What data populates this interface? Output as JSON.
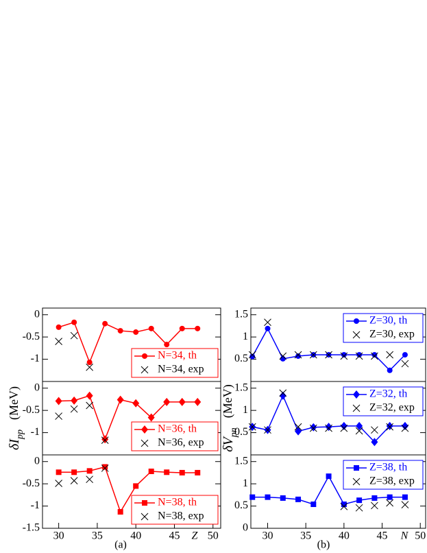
{
  "chart_data": [
    {
      "type": "line",
      "xlim": [
        27.9,
        51
      ],
      "ylim": [
        -1.5,
        0.15
      ],
      "yticks": [
        0,
        -0.5,
        -1
      ],
      "legend": "lower right",
      "series": [
        {
          "name": "N=34, th",
          "color": "#ff0000",
          "marker": "circle",
          "line": true,
          "x": [
            30,
            32,
            34,
            36,
            38,
            40,
            42,
            44,
            46,
            48
          ],
          "values": [
            -0.28,
            -0.17,
            -1.07,
            -0.2,
            -0.36,
            -0.39,
            -0.31,
            -0.67,
            -0.31,
            -0.31
          ]
        },
        {
          "name": "N=34, exp",
          "color": "#000000",
          "marker": "cross",
          "line": false,
          "x": [
            30,
            32,
            34
          ],
          "values": [
            -0.6,
            -0.47,
            -1.18
          ]
        }
      ]
    },
    {
      "type": "line",
      "xlim": [
        27.9,
        51
      ],
      "ylim": [
        -1.5,
        0.15
      ],
      "yticks": [
        0,
        -0.5,
        -1
      ],
      "legend": "lower right",
      "ylabel": "δI",
      "ylabel_sub": "pp",
      "ylabel_unit": "(MeV)",
      "series": [
        {
          "name": "N=36, th",
          "color": "#ff0000",
          "marker": "diamond",
          "line": true,
          "x": [
            30,
            32,
            34,
            36,
            38,
            40,
            42,
            44,
            46,
            48
          ],
          "values": [
            -0.29,
            -0.28,
            -0.17,
            -1.15,
            -0.26,
            -0.34,
            -0.66,
            -0.31,
            -0.31,
            -0.31
          ]
        },
        {
          "name": "N=36, exp",
          "color": "#000000",
          "marker": "cross",
          "line": false,
          "x": [
            30,
            32,
            34,
            36
          ],
          "values": [
            -0.63,
            -0.47,
            -0.39,
            -1.17
          ]
        }
      ]
    },
    {
      "type": "line",
      "xlim": [
        27.9,
        51
      ],
      "ylim": [
        -1.5,
        0.15
      ],
      "yticks": [
        0,
        -0.5,
        -1,
        -1.5
      ],
      "xticks": [
        30,
        35,
        40,
        45,
        50
      ],
      "legend": "lower right",
      "xlabel": "Z",
      "caption": "(a)",
      "series": [
        {
          "name": "N=38, th",
          "color": "#ff0000",
          "marker": "square",
          "line": true,
          "x": [
            30,
            32,
            34,
            36,
            38,
            40,
            42,
            44,
            46,
            48
          ],
          "values": [
            -0.24,
            -0.24,
            -0.21,
            -0.12,
            -1.13,
            -0.55,
            -0.22,
            -0.24,
            -0.25,
            -0.25
          ]
        },
        {
          "name": "N=38, exp",
          "color": "#000000",
          "marker": "cross",
          "line": false,
          "x": [
            30,
            32,
            34,
            36
          ],
          "values": [
            -0.49,
            -0.43,
            -0.4,
            -0.15
          ]
        }
      ]
    },
    {
      "type": "line",
      "xlim": [
        27.8,
        50.7
      ],
      "ylim": [
        0,
        1.65
      ],
      "yticks": [
        1.5,
        1,
        0.5
      ],
      "legend": "upper right",
      "series": [
        {
          "name": "Z=30, th",
          "color": "#0000ff",
          "marker": "circle",
          "line": true,
          "x": [
            28,
            30,
            32,
            34,
            36,
            38,
            40,
            42,
            44,
            46,
            48
          ],
          "values": [
            0.56,
            1.19,
            0.51,
            0.57,
            0.6,
            0.6,
            0.6,
            0.6,
            0.6,
            0.25,
            0.6
          ]
        },
        {
          "name": "Z=30, exp",
          "color": "#000000",
          "marker": "cross",
          "line": false,
          "x": [
            28,
            30,
            32,
            34,
            36,
            38,
            40,
            42,
            44,
            46,
            48
          ],
          "values": [
            0.6,
            1.33,
            0.57,
            0.6,
            0.6,
            0.6,
            0.57,
            0.57,
            0.57,
            0.6,
            0.4
          ]
        }
      ]
    },
    {
      "type": "line",
      "xlim": [
        27.8,
        50.7
      ],
      "ylim": [
        0,
        1.65
      ],
      "yticks": [
        1.5,
        1,
        0.5
      ],
      "legend": "upper right",
      "ylabel": "δV",
      "ylabel_sub": "pn",
      "ylabel_unit": "(MeV)",
      "series": [
        {
          "name": "Z=32, th",
          "color": "#0000ff",
          "marker": "diamond",
          "line": true,
          "x": [
            28,
            30,
            32,
            34,
            36,
            38,
            40,
            42,
            44,
            46,
            48
          ],
          "values": [
            0.63,
            0.56,
            1.33,
            0.53,
            0.62,
            0.63,
            0.65,
            0.65,
            0.29,
            0.65,
            0.65
          ]
        },
        {
          "name": "Z=32, exp",
          "color": "#000000",
          "marker": "cross",
          "line": false,
          "x": [
            28,
            30,
            32,
            34,
            36,
            38,
            40,
            42,
            44,
            46,
            48
          ],
          "values": [
            0.63,
            0.56,
            1.39,
            0.63,
            0.6,
            0.6,
            0.6,
            0.54,
            0.56,
            0.63,
            0.6
          ]
        }
      ]
    },
    {
      "type": "line",
      "xlim": [
        27.8,
        50.7
      ],
      "ylim": [
        0,
        1.65
      ],
      "yticks": [
        0,
        0.5,
        1,
        1.5
      ],
      "xticks": [
        30,
        35,
        40,
        45,
        50
      ],
      "legend": "upper right",
      "xlabel": "N",
      "caption": "(b)",
      "series": [
        {
          "name": "Z=38, th",
          "color": "#0000ff",
          "marker": "square",
          "line": true,
          "x": [
            28,
            30,
            32,
            34,
            36,
            38,
            40,
            42,
            44,
            46,
            48
          ],
          "values": [
            0.7,
            0.7,
            0.68,
            0.65,
            0.54,
            1.17,
            0.54,
            0.63,
            0.68,
            0.7,
            0.7
          ]
        },
        {
          "name": "Z=38, exp",
          "color": "#000000",
          "marker": "cross",
          "line": false,
          "x": [
            40,
            42,
            44,
            46,
            48
          ],
          "values": [
            0.49,
            0.46,
            0.51,
            0.57,
            0.53
          ]
        }
      ]
    }
  ]
}
